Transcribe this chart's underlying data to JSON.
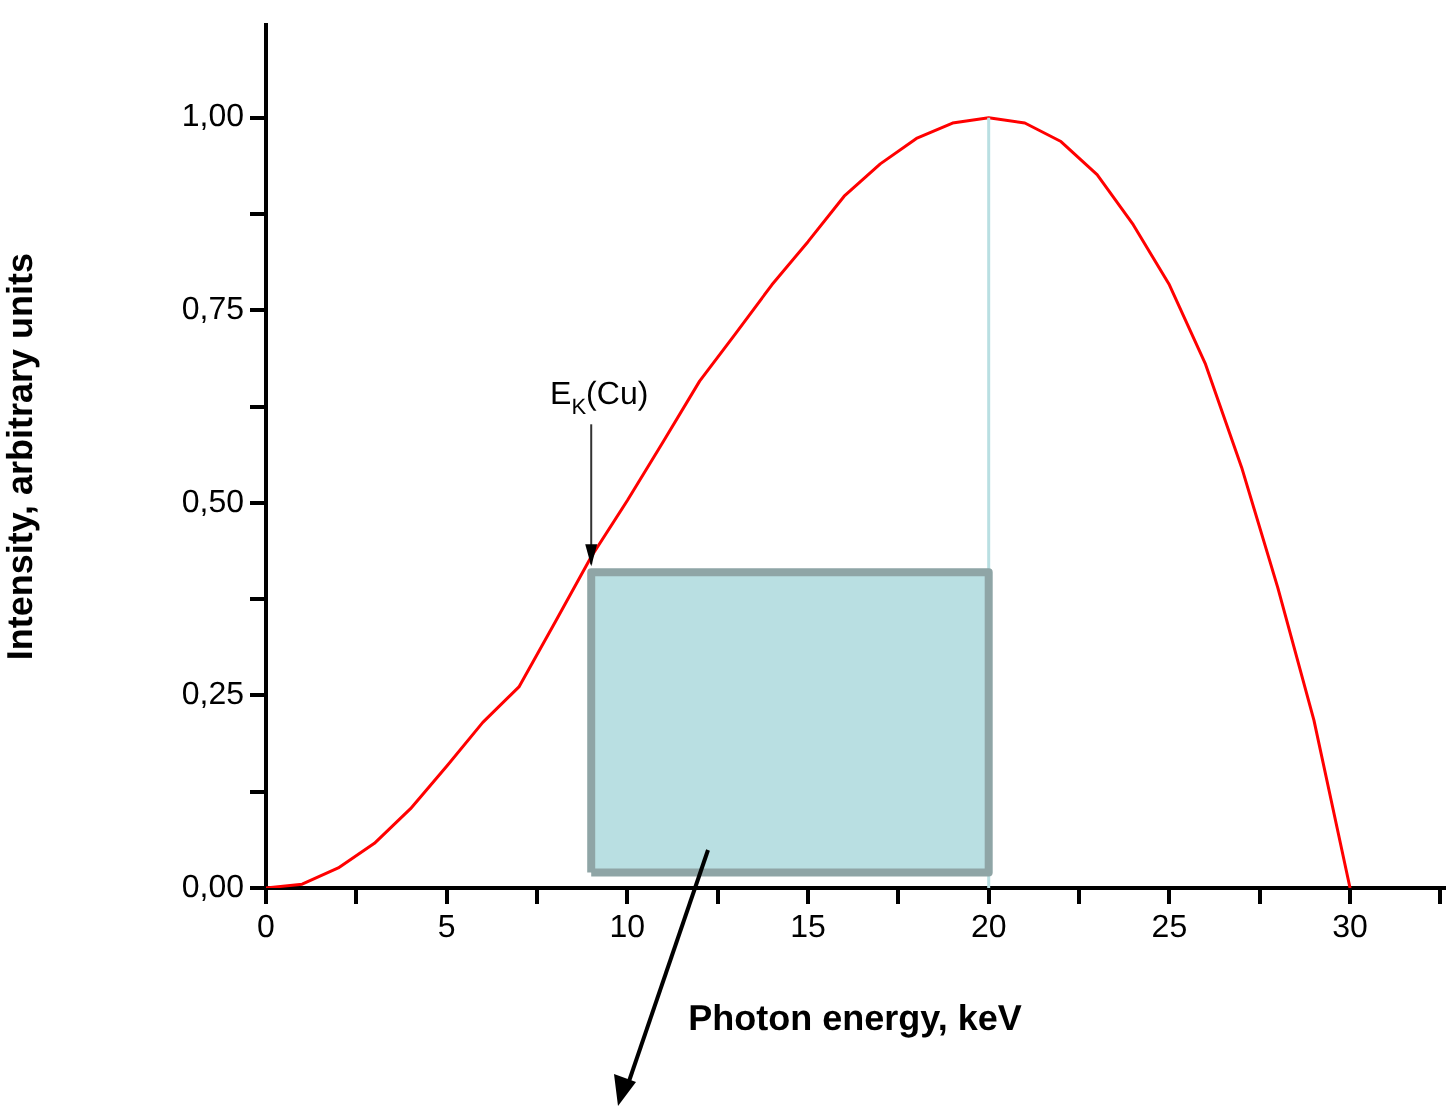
{
  "chart_data": {
    "type": "line",
    "xlabel": "Photon energy, keV",
    "ylabel": "Intensity, arbitrary units",
    "xlim": [
      0,
      32.6
    ],
    "ylim": [
      0,
      1.12
    ],
    "xticks": [
      0,
      {
        "value": 2.5,
        "label": null
      },
      5,
      {
        "value": 7.5,
        "label": null
      },
      10,
      {
        "value": 12.5,
        "label": null
      },
      15,
      {
        "value": 17.5,
        "label": null
      },
      20,
      {
        "value": 22.5,
        "label": null
      },
      25,
      {
        "value": 27.5,
        "label": null
      },
      30,
      {
        "value": 32.5,
        "label": null
      }
    ],
    "yticks": [
      {
        "value": 0,
        "label": "0,00"
      },
      {
        "value": 0.125,
        "label": null
      },
      {
        "value": 0.25,
        "label": "0,25"
      },
      {
        "value": 0.375,
        "label": null
      },
      {
        "value": 0.5,
        "label": "0,50"
      },
      {
        "value": 0.625,
        "label": null
      },
      {
        "value": 0.75,
        "label": "0,75"
      },
      {
        "value": 0.875,
        "label": null
      },
      {
        "value": 1,
        "label": "1,00"
      }
    ],
    "grid": false,
    "legend": false,
    "marker": "none",
    "line_style": "solid",
    "series": [
      {
        "type": "area",
        "color": "#8fa5a6",
        "x": [
          9,
          9,
          20,
          20,
          9
        ],
        "values": [
          0.02,
          0.41,
          0.41,
          0.02,
          0.02
        ]
      },
      {
        "color": "#b9dfe2",
        "x": [
          20,
          20
        ],
        "values": [
          0,
          1.0
        ]
      },
      {
        "color": "#ff0000",
        "x": [
          0,
          1,
          2,
          3,
          4,
          5,
          6,
          7,
          8,
          9,
          10,
          11,
          12,
          13,
          14,
          15,
          16,
          17,
          18,
          19,
          20,
          21,
          22,
          23,
          24,
          25,
          26,
          27,
          28,
          29,
          30
        ],
        "values": [
          0,
          0.005,
          0.026,
          0.058,
          0.103,
          0.158,
          0.215,
          0.261,
          0.345,
          0.43,
          0.503,
          0.58,
          0.658,
          0.72,
          0.783,
          0.839,
          0.898,
          0.94,
          0.973,
          0.993,
          1.0,
          0.993,
          0.969,
          0.926,
          0.861,
          0.783,
          0.68,
          0.546,
          0.39,
          0.218,
          0
        ]
      }
    ],
    "annotations": [
      {
        "text": "E$_{K}$(Cu)",
        "x": 9,
        "y": 0.415
      }
    ]
  }
}
